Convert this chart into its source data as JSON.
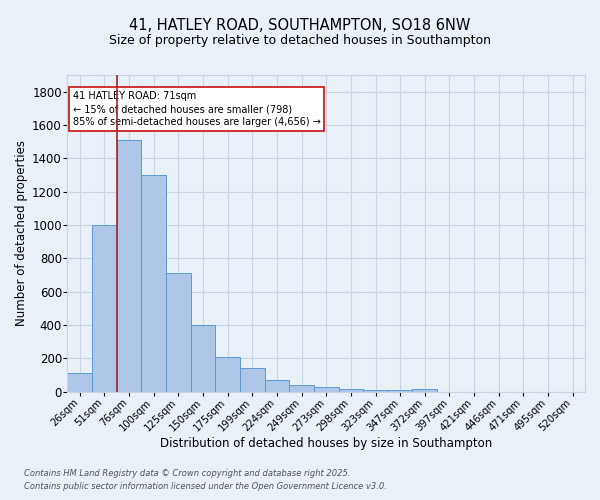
{
  "title_line1": "41, HATLEY ROAD, SOUTHAMPTON, SO18 6NW",
  "title_line2": "Size of property relative to detached houses in Southampton",
  "xlabel": "Distribution of detached houses by size in Southampton",
  "ylabel": "Number of detached properties",
  "categories": [
    "26sqm",
    "51sqm",
    "76sqm",
    "100sqm",
    "125sqm",
    "150sqm",
    "175sqm",
    "199sqm",
    "224sqm",
    "249sqm",
    "273sqm",
    "298sqm",
    "323sqm",
    "347sqm",
    "372sqm",
    "397sqm",
    "421sqm",
    "446sqm",
    "471sqm",
    "495sqm",
    "520sqm"
  ],
  "values": [
    110,
    1000,
    1510,
    1300,
    710,
    400,
    210,
    140,
    70,
    40,
    30,
    15,
    10,
    10,
    15,
    0,
    0,
    0,
    0,
    0,
    0
  ],
  "bar_color": "#aec6e8",
  "bar_edge_color": "#5b9bd5",
  "bg_color": "#eaf0f8",
  "grid_color": "#c8d4e4",
  "vline_color": "#aa2222",
  "annotation_title": "41 HATLEY ROAD: 71sqm",
  "annotation_line2": "← 15% of detached houses are smaller (798)",
  "annotation_line3": "85% of semi-detached houses are larger (4,656) →",
  "annotation_box_color": "#ffffff",
  "annotation_box_edge": "#cc2222",
  "ylim": [
    0,
    1900
  ],
  "yticks": [
    0,
    200,
    400,
    600,
    800,
    1000,
    1200,
    1400,
    1600,
    1800
  ],
  "footnote1": "Contains HM Land Registry data © Crown copyright and database right 2025.",
  "footnote2": "Contains public sector information licensed under the Open Government Licence v3.0.",
  "title_fontsize": 10.5,
  "subtitle_fontsize": 9
}
